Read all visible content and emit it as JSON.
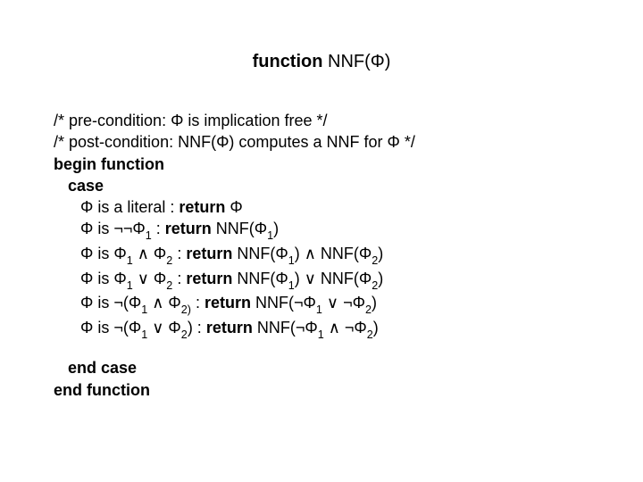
{
  "title_prefix_bold": "function",
  "title_rest": " NNF(Φ)",
  "pre_cond": "/* pre-condition: Φ is implication free */",
  "post_cond": "/* post-condition: NNF(Φ) computes a NNF for Φ */",
  "begin_function": "begin function",
  "case_kw": "case",
  "c1_a": "Φ is a literal : ",
  "c1_ret": "return",
  "c1_b": " Φ",
  "c2_a": "Φ is ¬¬Φ",
  "c2_s1": "1",
  "c2_b": " : ",
  "c2_ret": "return",
  "c2_c": " NNF(Φ",
  "c2_s2": "1",
  "c2_d": ")",
  "c3_a": "Φ is Φ",
  "c3_s1": "1",
  "c3_b": " ∧ Φ",
  "c3_s2": "2",
  "c3_c": " : ",
  "c3_ret": "return",
  "c3_d": " NNF(Φ",
  "c3_s3": "1",
  "c3_e": ") ∧ NNF(Φ",
  "c3_s4": "2",
  "c3_f": ")",
  "c4_a": "Φ is Φ",
  "c4_s1": "1",
  "c4_b": " ∨ Φ",
  "c4_s2": "2",
  "c4_c": " : ",
  "c4_ret": "return",
  "c4_d": " NNF(Φ",
  "c4_s3": "1",
  "c4_e": ") ∨ NNF(Φ",
  "c4_s4": "2",
  "c4_f": ")",
  "c5_a": "Φ is ¬(Φ",
  "c5_s1": "1",
  "c5_b": " ∧ Φ",
  "c5_s2": "2)",
  "c5_c": " : ",
  "c5_ret": "return",
  "c5_d": " NNF(¬Φ",
  "c5_s3": "1",
  "c5_e": " ∨ ¬Φ",
  "c5_s4": "2",
  "c5_f": ")",
  "c6_a": "Φ is ¬(Φ",
  "c6_s1": "1",
  "c6_b": " ∨ Φ",
  "c6_s2": "2",
  "c6_c": ") : ",
  "c6_ret": "return",
  "c6_d": " NNF(¬Φ",
  "c6_s3": "1",
  "c6_e": " ∧ ¬Φ",
  "c6_s4": "2",
  "c6_f": ")",
  "end_case": "end case",
  "end_function": "end function"
}
